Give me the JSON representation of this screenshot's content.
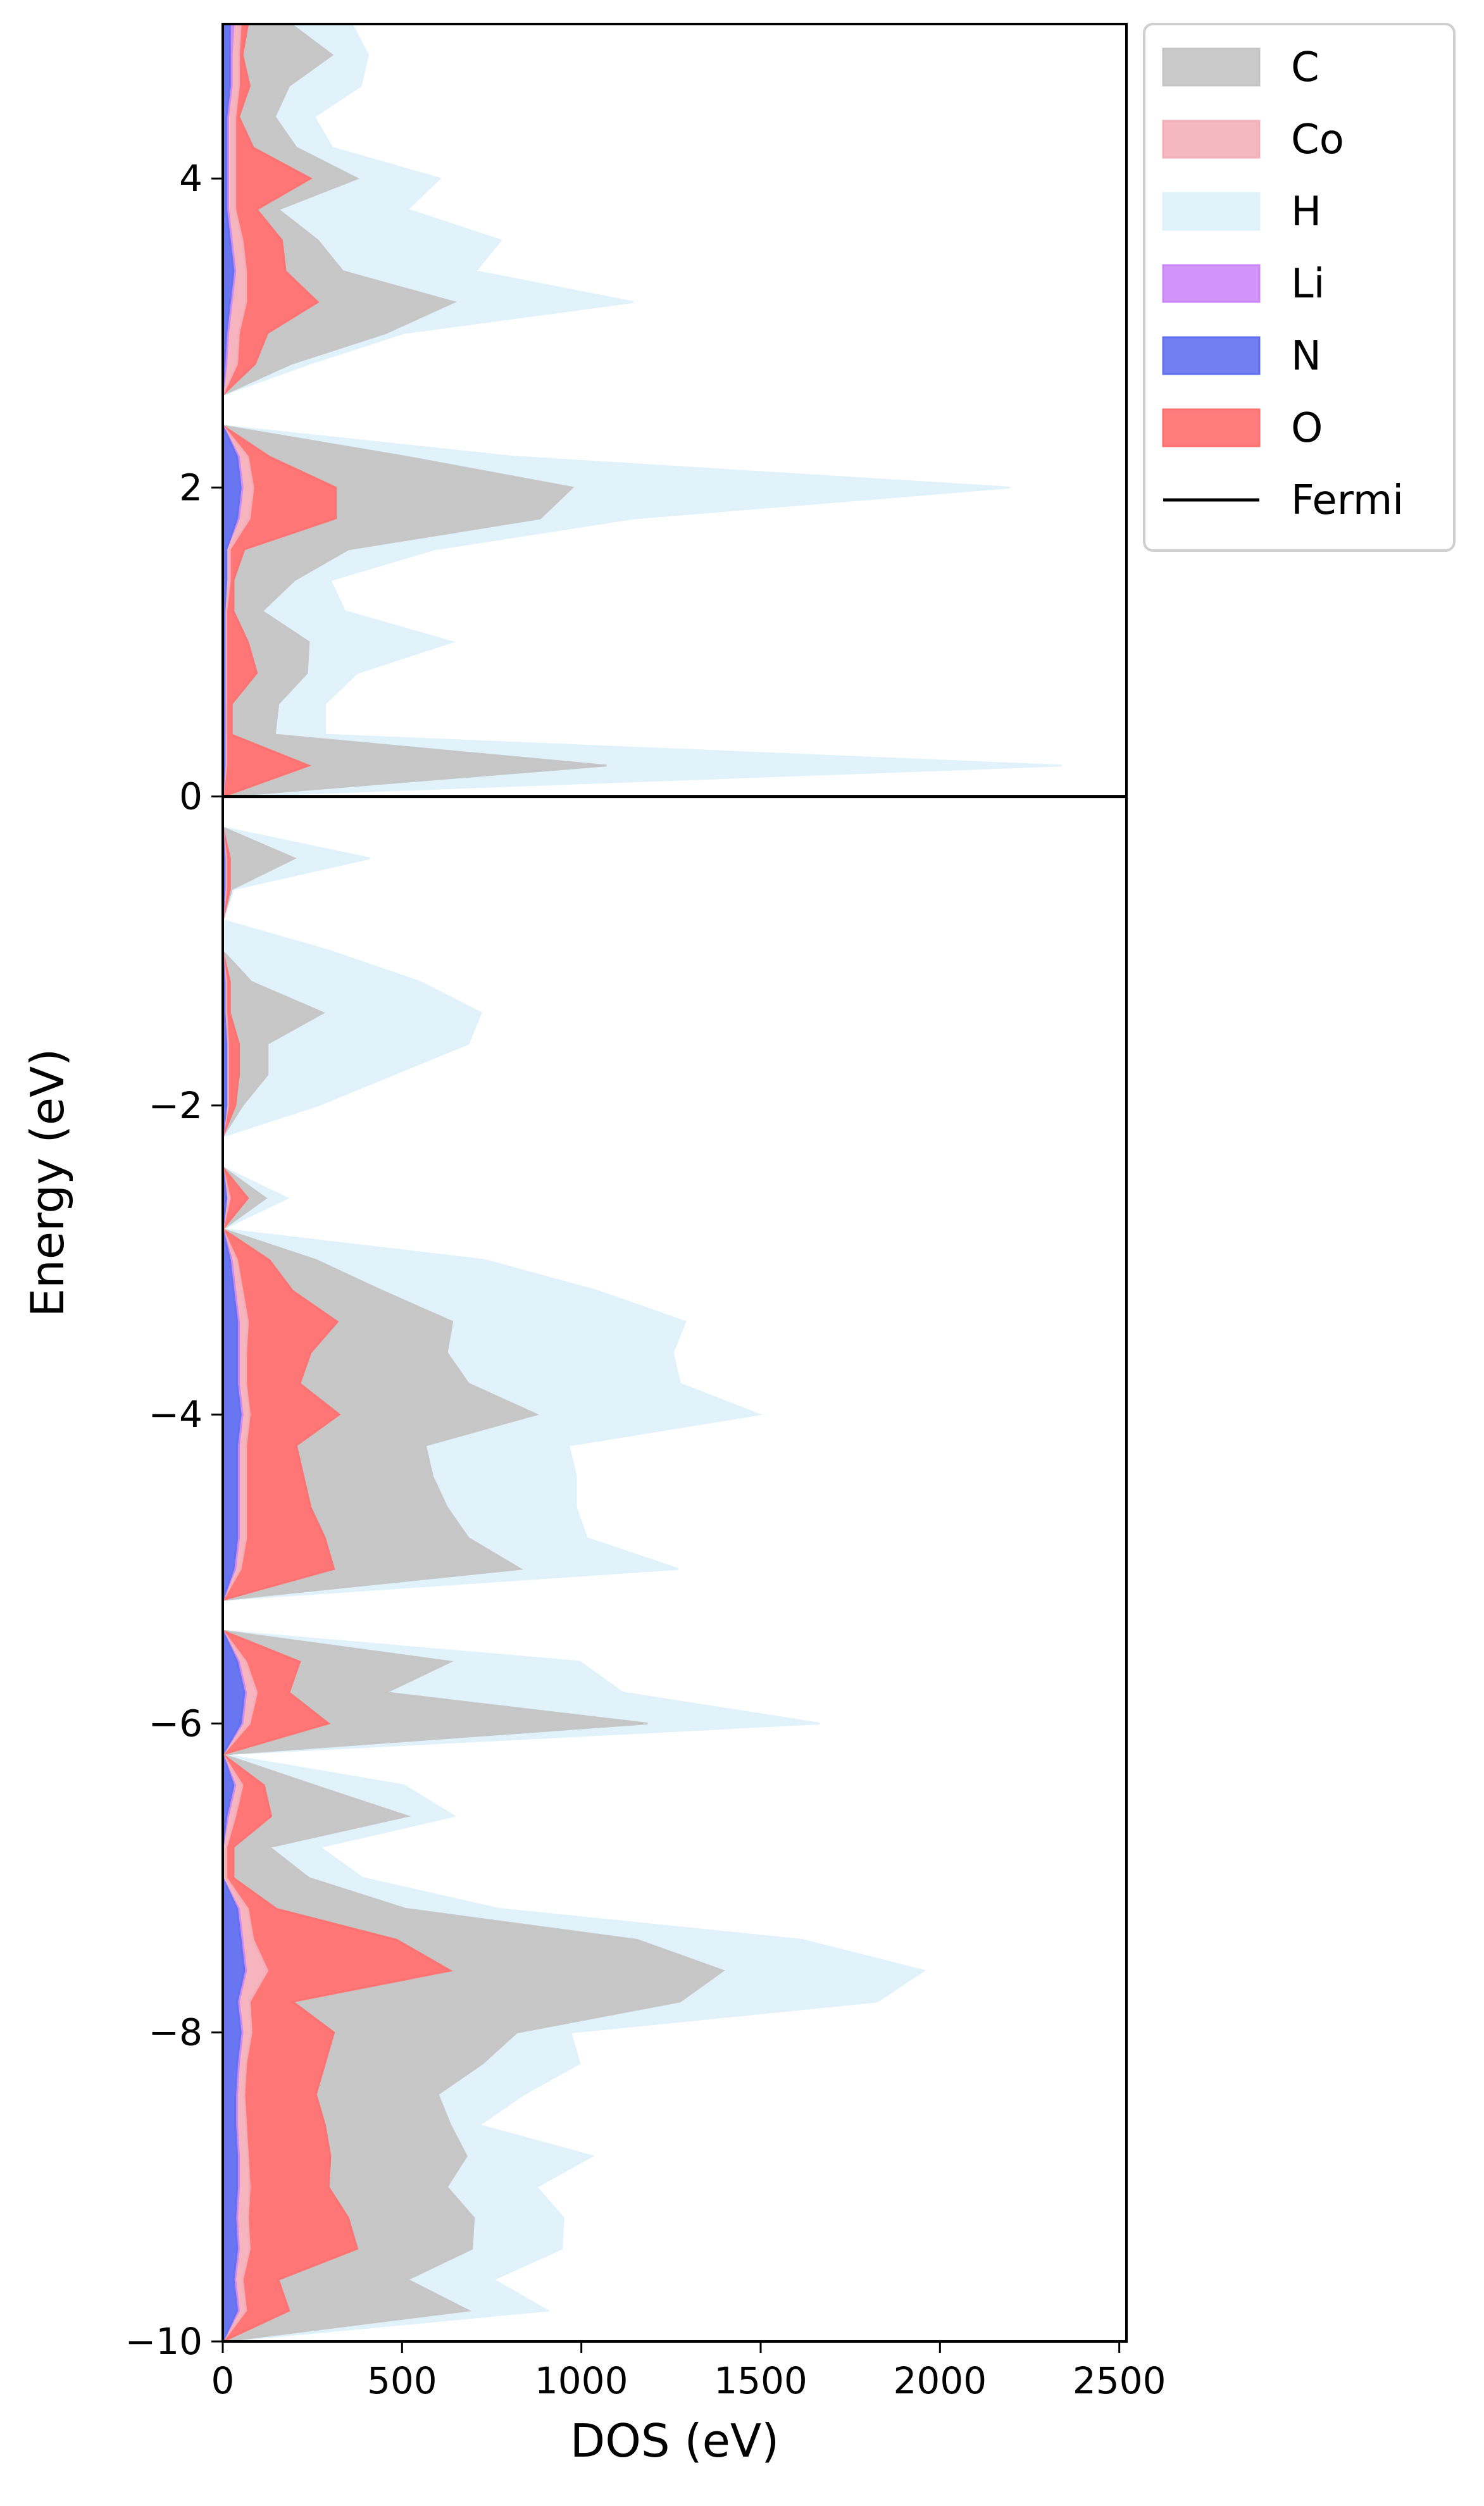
{
  "chart_data": {
    "type": "area",
    "orientation": "horizontal",
    "stacked": true,
    "xlabel": "DOS (eV)",
    "ylabel": "Energy (eV)",
    "xlim": [
      0,
      2520
    ],
    "ylim": [
      -10,
      5
    ],
    "xticks": [
      0,
      500,
      1000,
      1500,
      2000,
      2500
    ],
    "yticks": [
      -10,
      -8,
      -6,
      -4,
      -2,
      0,
      2,
      4
    ],
    "grid": false,
    "legend_position": "outside-top-right",
    "fermi_level": 0,
    "energies": [
      -10.0,
      -9.8,
      -9.6,
      -9.4,
      -9.2,
      -9.0,
      -8.8,
      -8.6,
      -8.4,
      -8.2,
      -8.0,
      -7.8,
      -7.6,
      -7.4,
      -7.2,
      -7.0,
      -6.8,
      -6.6,
      -6.4,
      -6.2,
      -6.0,
      -5.8,
      -5.6,
      -5.4,
      -5.2,
      -5.0,
      -4.8,
      -4.6,
      -4.4,
      -4.2,
      -4.0,
      -3.8,
      -3.6,
      -3.4,
      -3.2,
      -3.0,
      -2.8,
      -2.6,
      -2.4,
      -2.2,
      -2.0,
      -1.8,
      -1.6,
      -1.4,
      -1.2,
      -1.0,
      -0.8,
      -0.6,
      -0.4,
      -0.2,
      0.0,
      0.2,
      0.4,
      0.6,
      0.8,
      1.0,
      1.2,
      1.4,
      1.6,
      1.8,
      2.0,
      2.2,
      2.4,
      2.6,
      2.8,
      3.0,
      3.2,
      3.4,
      3.6,
      3.8,
      4.0,
      4.2,
      4.4,
      4.6,
      4.8,
      5.0
    ],
    "series": [
      {
        "name": "N",
        "color": "#6070f0",
        "values": [
          0,
          40,
          30,
          40,
          35,
          40,
          40,
          35,
          35,
          40,
          50,
          40,
          60,
          50,
          40,
          0,
          0,
          10,
          30,
          0,
          50,
          60,
          40,
          0,
          0,
          30,
          40,
          40,
          40,
          40,
          50,
          40,
          40,
          40,
          30,
          20,
          0,
          10,
          0,
          0,
          10,
          10,
          10,
          5,
          5,
          0,
          0,
          5,
          5,
          0,
          0,
          5,
          5,
          5,
          5,
          5,
          5,
          10,
          10,
          40,
          50,
          40,
          0,
          0,
          5,
          10,
          20,
          30,
          20,
          10,
          10,
          10,
          10,
          20,
          20,
          20
        ]
      },
      {
        "name": "Li",
        "color": "#cc88f8",
        "values": [
          0,
          5,
          5,
          5,
          5,
          5,
          5,
          5,
          5,
          5,
          5,
          5,
          5,
          5,
          5,
          0,
          0,
          5,
          5,
          0,
          5,
          5,
          5,
          0,
          0,
          5,
          5,
          5,
          5,
          5,
          5,
          5,
          5,
          5,
          5,
          5,
          0,
          0,
          0,
          0,
          0,
          0,
          0,
          0,
          0,
          0,
          0,
          0,
          0,
          0,
          0,
          0,
          0,
          0,
          0,
          0,
          0,
          0,
          0,
          5,
          5,
          5,
          0,
          0,
          5,
          5,
          5,
          5,
          5,
          5,
          5,
          5,
          5,
          5,
          5,
          10
        ]
      },
      {
        "name": "Co",
        "color": "#f4b0ba",
        "values": [
          0,
          20,
          20,
          30,
          30,
          30,
          25,
          25,
          20,
          20,
          25,
          30,
          60,
          30,
          25,
          10,
          10,
          20,
          20,
          0,
          20,
          30,
          20,
          0,
          0,
          15,
          20,
          20,
          20,
          20,
          20,
          20,
          20,
          25,
          20,
          15,
          0,
          10,
          0,
          0,
          5,
          5,
          5,
          5,
          5,
          0,
          0,
          5,
          5,
          0,
          0,
          5,
          5,
          5,
          5,
          5,
          5,
          10,
          10,
          30,
          30,
          25,
          0,
          0,
          30,
          30,
          40,
          30,
          30,
          20,
          20,
          20,
          20,
          20,
          20,
          20
        ]
      },
      {
        "name": "O",
        "color": "#ff6f6f",
        "values": [
          0,
          120,
          100,
          300,
          280,
          220,
          230,
          220,
          200,
          220,
          230,
          120,
          510,
          400,
          80,
          20,
          20,
          100,
          60,
          0,
          220,
          90,
          150,
          0,
          0,
          260,
          220,
          180,
          160,
          140,
          250,
          150,
          180,
          250,
          140,
          90,
          0,
          50,
          0,
          0,
          20,
          30,
          30,
          10,
          10,
          0,
          0,
          10,
          10,
          0,
          0,
          230,
          15,
          15,
          85,
          60,
          20,
          10,
          40,
          240,
          230,
          60,
          0,
          0,
          50,
          80,
          200,
          110,
          110,
          60,
          210,
          50,
          10,
          30,
          10,
          20
        ]
      },
      {
        "name": "C",
        "color": "#c4c4c4",
        "values": [
          0,
          500,
          360,
          320,
          350,
          330,
          380,
          350,
          340,
          440,
          510,
          1080,
          760,
          670,
          360,
          210,
          100,
          380,
          140,
          0,
          890,
          270,
          420,
          0,
          0,
          520,
          400,
          380,
          360,
          360,
          550,
          470,
          380,
          320,
          250,
          130,
          0,
          50,
          0,
          0,
          20,
          80,
          80,
          260,
          60,
          0,
          0,
          5,
          180,
          0,
          0,
          830,
          120,
          130,
          140,
          170,
          80,
          170,
          290,
          570,
          660,
          380,
          0,
          0,
          100,
          330,
          380,
          160,
          100,
          60,
          130,
          120,
          100,
          110,
          250,
          120
        ]
      },
      {
        "name": "H",
        "color": "#dff1fa",
        "values": [
          0,
          220,
          240,
          250,
          250,
          250,
          350,
          80,
          240,
          270,
          150,
          550,
          560,
          460,
          260,
          150,
          140,
          130,
          250,
          0,
          480,
          660,
          360,
          0,
          0,
          440,
          330,
          360,
          400,
          400,
          620,
          590,
          630,
          650,
          600,
          470,
          0,
          60,
          0,
          0,
          210,
          350,
          560,
          440,
          470,
          300,
          0,
          5,
          210,
          0,
          0,
          1270,
          140,
          130,
          140,
          400,
          230,
          100,
          240,
          260,
          1220,
          300,
          0,
          0,
          50,
          50,
          500,
          370,
          510,
          360,
          230,
          100,
          110,
          200,
          100,
          170
        ]
      }
    ],
    "legend": [
      "C",
      "Co",
      "H",
      "Li",
      "N",
      "O",
      "Fermi"
    ]
  }
}
